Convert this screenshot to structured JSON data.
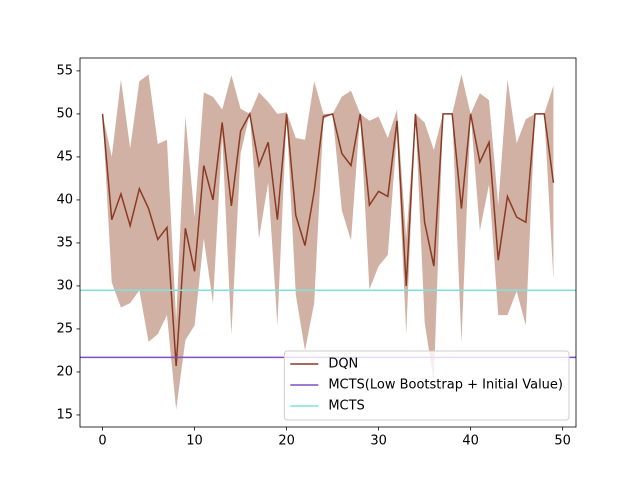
{
  "chart_data": {
    "type": "line",
    "x": [
      0,
      1,
      2,
      3,
      4,
      5,
      6,
      7,
      8,
      9,
      10,
      11,
      12,
      13,
      14,
      15,
      16,
      17,
      18,
      19,
      20,
      21,
      22,
      23,
      24,
      25,
      26,
      27,
      28,
      29,
      30,
      31,
      32,
      33,
      34,
      35,
      36,
      37,
      38,
      39,
      40,
      41,
      42,
      43,
      44,
      45,
      46,
      47,
      48,
      49
    ],
    "series": [
      {
        "name": "DQN",
        "color": "#8b3a22",
        "band_color": "#d2b1a5",
        "values": [
          50,
          37.7,
          40.7,
          37,
          41.3,
          39,
          35.4,
          36.8,
          20.7,
          36.7,
          31.7,
          44,
          40,
          49,
          39.3,
          48,
          50,
          44,
          46.7,
          37.7,
          50,
          38.2,
          34.7,
          41,
          49.7,
          50,
          45.4,
          44,
          50,
          39.4,
          41,
          40.4,
          49.2,
          30,
          50,
          37.4,
          32.3,
          50,
          50,
          39,
          50,
          44.4,
          46.7,
          33,
          40.4,
          38,
          37.4,
          50,
          50,
          42
        ],
        "band_upper": [
          50,
          45,
          54,
          46,
          53.8,
          54.6,
          46.5,
          47,
          26,
          49.7,
          38,
          52.5,
          52,
          50.5,
          54.5,
          50.6,
          50,
          52.5,
          51.4,
          50,
          50.2,
          47.2,
          47,
          53.8,
          50,
          50,
          52,
          52.7,
          50,
          49.2,
          49.7,
          47.2,
          50.5,
          35.6,
          50,
          49,
          45.8,
          50,
          50,
          54.6,
          50,
          52.4,
          51.6,
          39.4,
          54,
          46.6,
          49.4,
          50,
          50,
          53.3
        ],
        "band_lower": [
          50,
          30.4,
          27.5,
          28,
          29.5,
          23.5,
          24.4,
          26.6,
          15.6,
          23.7,
          25.4,
          35.5,
          28,
          47.5,
          24.3,
          45.4,
          50,
          35.5,
          42,
          25.4,
          49.8,
          29,
          22.5,
          28,
          49.4,
          50,
          38.8,
          35.3,
          50,
          29.6,
          32.3,
          33.6,
          47.8,
          24.4,
          50,
          25.8,
          18.8,
          50,
          50,
          23.4,
          50,
          36.4,
          41.8,
          26.6,
          26.6,
          29.4,
          25.4,
          50,
          50,
          30.7
        ]
      }
    ],
    "hlines": [
      {
        "name": "MCTS(Low Bootstrap + Initial Value)",
        "color": "#7e4fc0",
        "value": 21.7
      },
      {
        "name": "MCTS",
        "color": "#7fe3da",
        "value": 29.5
      }
    ],
    "xlim": [
      -2.45,
      51.45
    ],
    "ylim": [
      13.6,
      56.5
    ],
    "xticks": [
      0,
      10,
      20,
      30,
      40,
      50
    ],
    "yticks": [
      15,
      20,
      25,
      30,
      35,
      40,
      45,
      50,
      55
    ],
    "legend": "lower right"
  }
}
